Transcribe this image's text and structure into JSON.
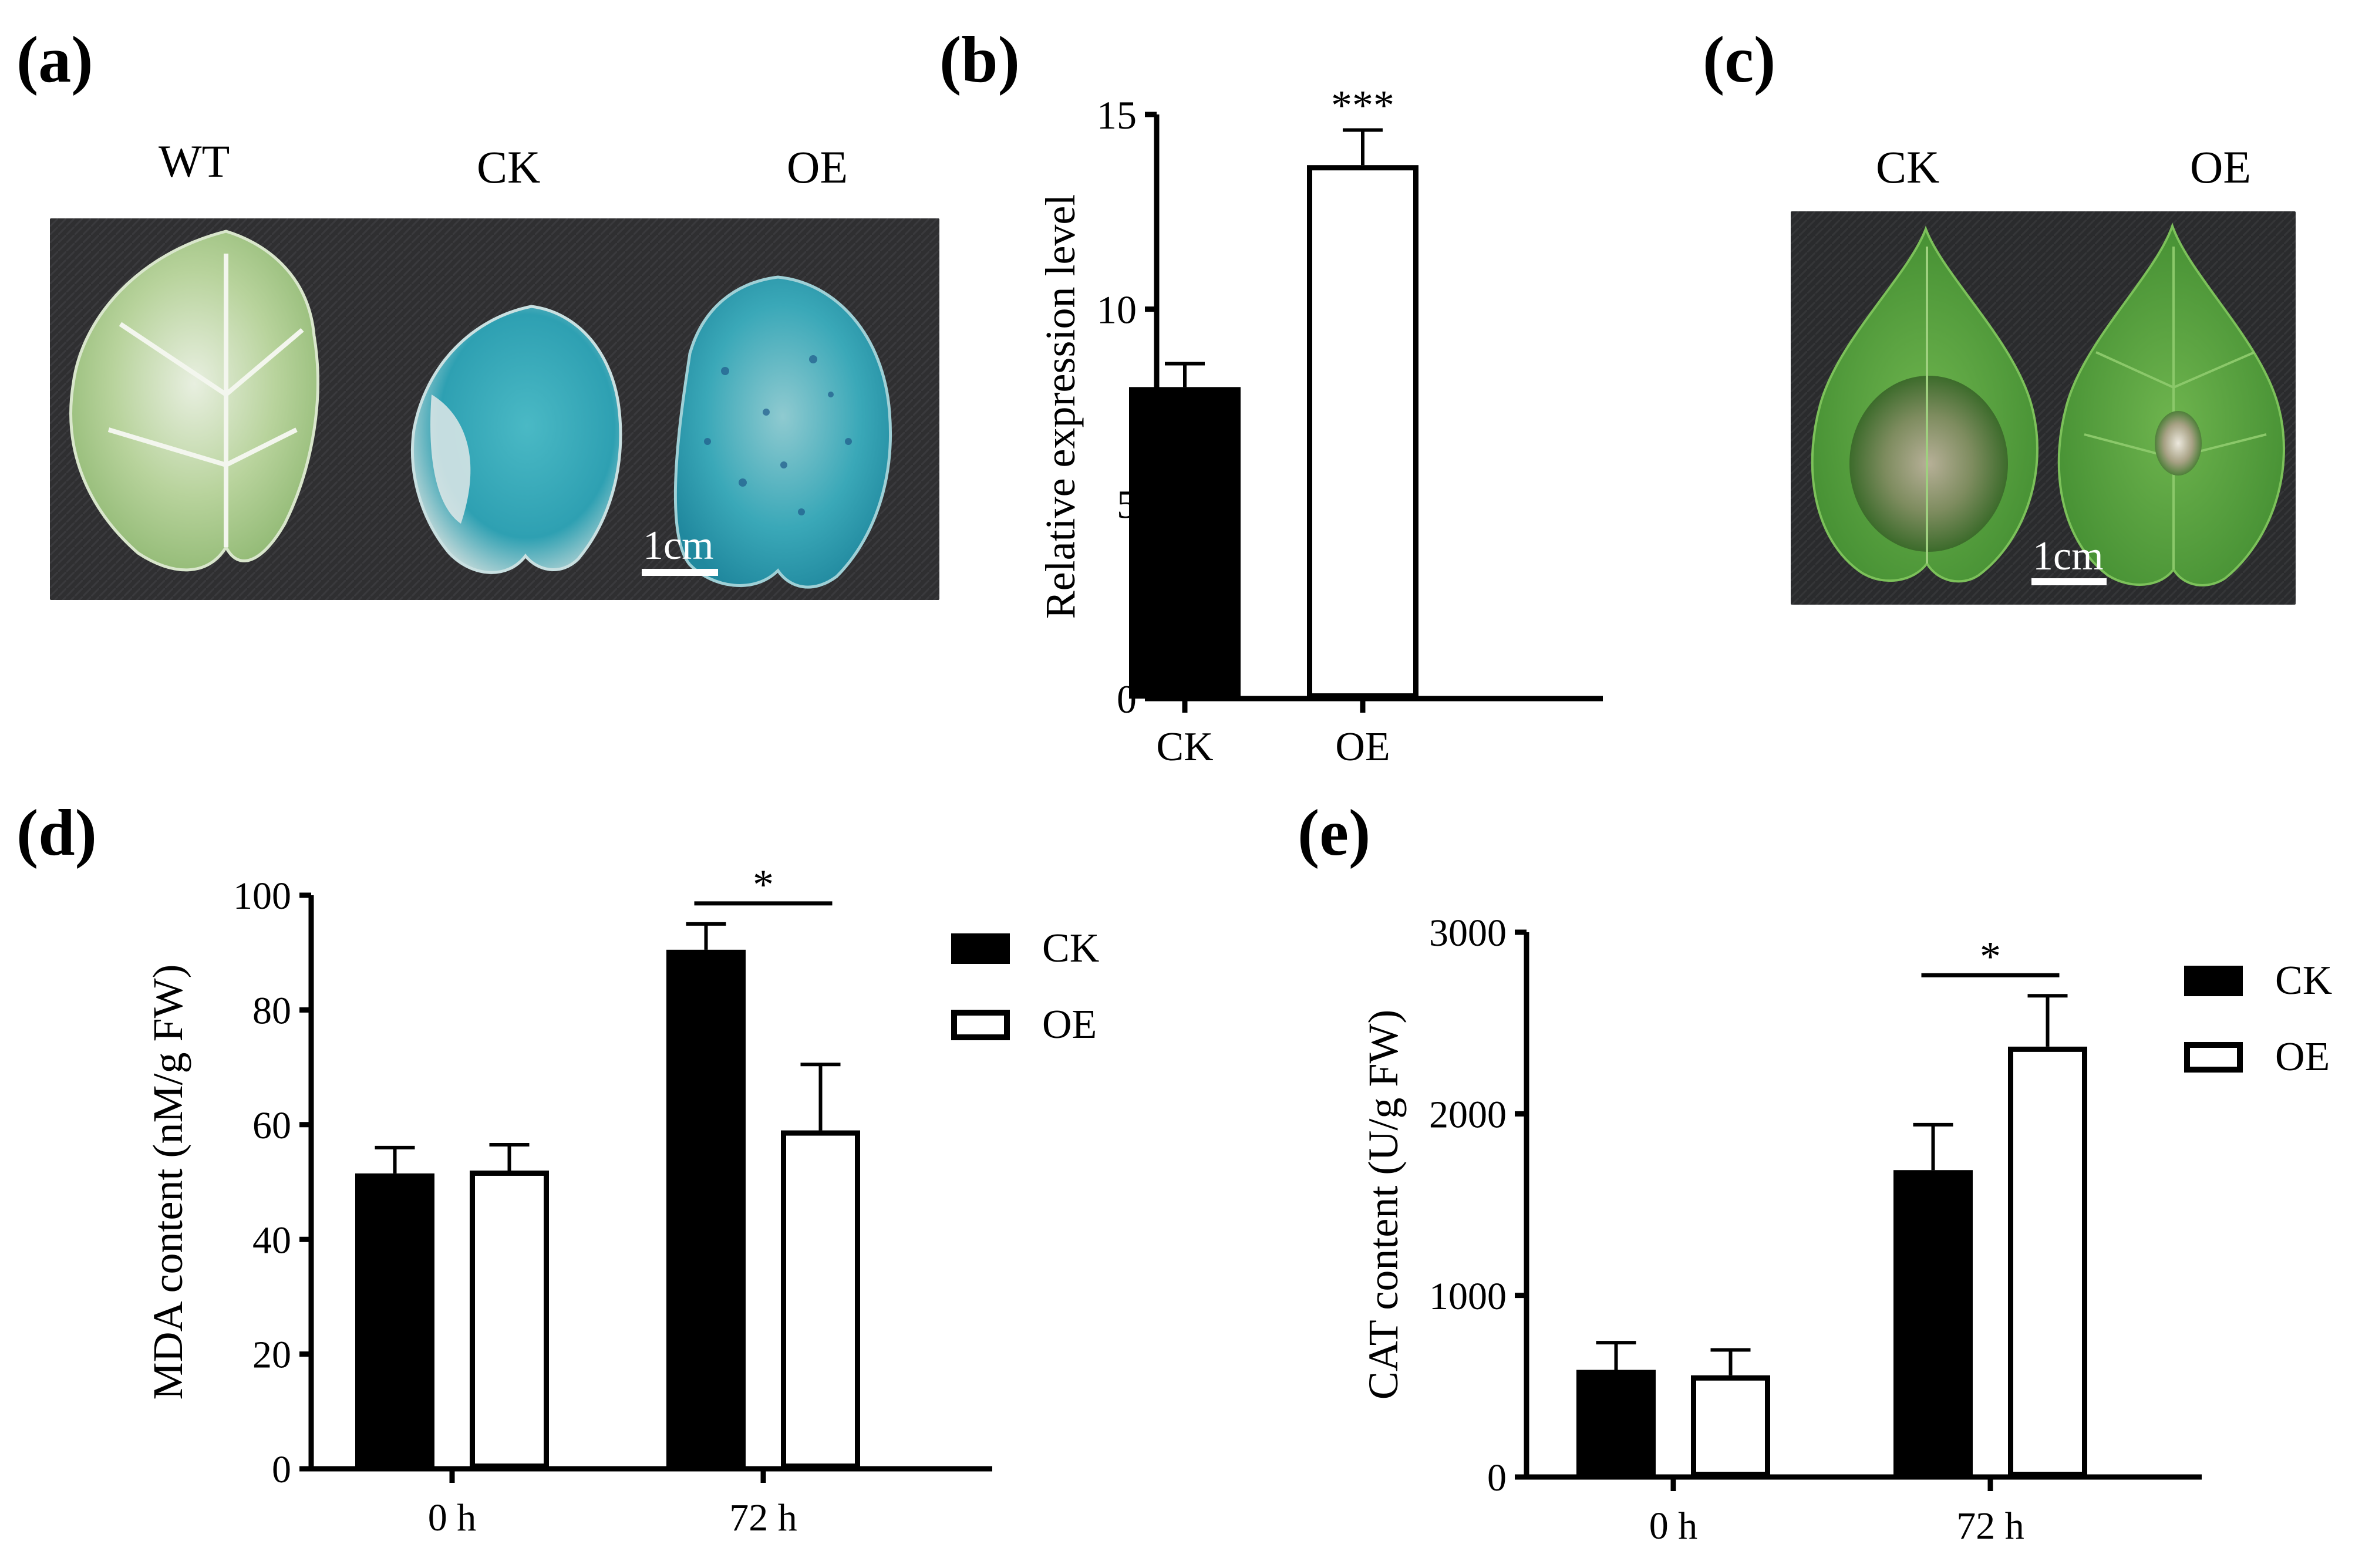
{
  "panels": {
    "a": {
      "label": "(a)",
      "leaf_labels": [
        "WT",
        "CK",
        "OE"
      ],
      "scale_bar": "1cm",
      "colors": {
        "background": "#2f2f31",
        "wt_leaf": "#bcd5a6",
        "gus_stain": "#3aa8b8"
      }
    },
    "b": {
      "label": "(b)"
    },
    "c": {
      "label": "(c)",
      "leaf_labels": [
        "CK",
        "OE"
      ],
      "scale_bar": "1cm",
      "colors": {
        "background": "#2a2b2d",
        "leaf": "#5da642",
        "lesion": "#6f8a55"
      }
    },
    "d": {
      "label": "(d)"
    },
    "e": {
      "label": "(e)"
    }
  },
  "chart_data": [
    {
      "id": "b",
      "type": "bar",
      "categories": [
        "CK",
        "OE"
      ],
      "values": [
        8.0,
        13.7
      ],
      "errors": [
        0.6,
        0.9
      ],
      "fills": [
        "#000000",
        "#ffffff"
      ],
      "ylabel": "Relative expression level",
      "ylim": [
        0,
        15
      ],
      "yticks": [
        "0",
        "5",
        "10",
        "15"
      ],
      "significance": [
        {
          "category": "OE",
          "label": "***"
        }
      ],
      "grid": false
    },
    {
      "id": "d",
      "type": "bar",
      "categories": [
        "0 h",
        "72 h"
      ],
      "series": [
        {
          "name": "CK",
          "values": [
            51.5,
            90.5
          ],
          "errors": [
            4.5,
            4.5
          ],
          "color": "#000000"
        },
        {
          "name": "OE",
          "values": [
            52.0,
            59.0
          ],
          "errors": [
            4.5,
            11.5
          ],
          "color": "#ffffff"
        }
      ],
      "ylabel": "MDA content (nM/g FW)",
      "ylim": [
        0,
        100
      ],
      "yticks": [
        "0",
        "20",
        "40",
        "60",
        "80",
        "100"
      ],
      "significance": [
        {
          "category": "72 h",
          "label": "*"
        }
      ],
      "legend": "right",
      "grid": false
    },
    {
      "id": "e",
      "type": "bar",
      "categories": [
        "0 h",
        "72 h"
      ],
      "series": [
        {
          "name": "CK",
          "values": [
            590,
            1690
          ],
          "errors": [
            150,
            250
          ],
          "color": "#000000"
        },
        {
          "name": "OE",
          "values": [
            560,
            2370
          ],
          "errors": [
            140,
            280
          ],
          "color": "#ffffff"
        }
      ],
      "ylabel": "CAT content (U/g FW)",
      "ylim": [
        0,
        3000
      ],
      "yticks": [
        "0",
        "1000",
        "2000",
        "3000"
      ],
      "significance": [
        {
          "category": "72 h",
          "label": "*"
        }
      ],
      "legend": "right",
      "grid": false
    }
  ]
}
